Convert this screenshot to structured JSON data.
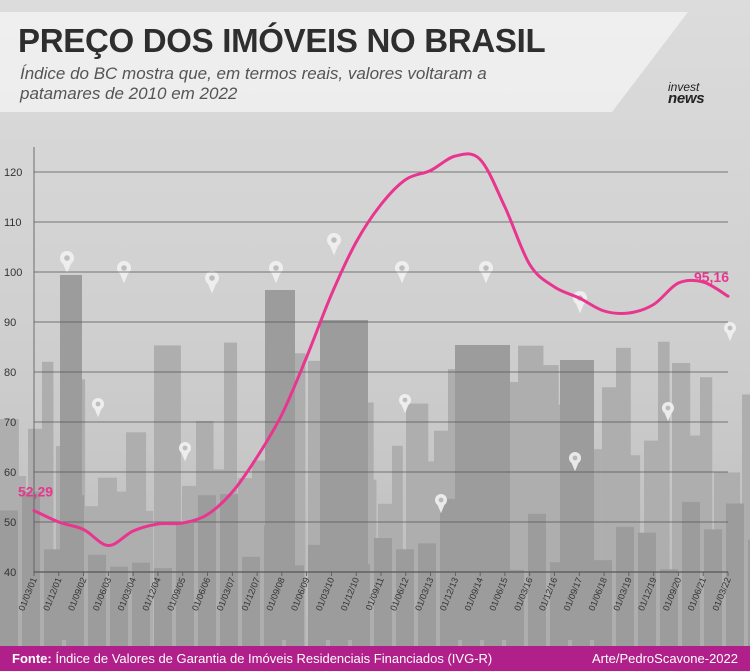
{
  "header": {
    "title": "PREÇO DOS IMÓVEIS NO BRASIL",
    "subtitle": "Índice do BC mostra que, em termos reais, valores voltaram a patamares de 2010 em 2022",
    "logo_line1": "invest",
    "logo_line2": "news"
  },
  "footer": {
    "source_label": "Fonte:",
    "source_text": "Índice de Valores de Garantia de Imóveis Residenciais Financiados (IVG-R)",
    "credit": "Arte/PedroScavone-2022"
  },
  "colors": {
    "line": "#e8368f",
    "footer": "#b1208a",
    "title": "#2e2e2e",
    "grid": "#555555"
  },
  "chart_data": {
    "type": "line",
    "ylim": [
      40,
      125
    ],
    "yticks": [
      40,
      50,
      60,
      70,
      80,
      90,
      100,
      110,
      120
    ],
    "grid": true,
    "categories": [
      "01/03/01",
      "01/12/01",
      "01/09/02",
      "01/06/03",
      "01/03/04",
      "01/12/04",
      "01/09/05",
      "01/06/06",
      "01/03/07",
      "01/12/07",
      "01/09/08",
      "01/06/09",
      "01/03/10",
      "01/12/10",
      "01/09/11",
      "01/06/12",
      "01/03/13",
      "01/12/13",
      "01/09/14",
      "01/06/15",
      "01/03/16",
      "01/12/16",
      "01/09/17",
      "01/06/18",
      "01/03/19",
      "01/12/19",
      "01/09/20",
      "01/06/21",
      "01/03/22"
    ],
    "values": [
      52.29,
      50.0,
      48.5,
      45.3,
      48.2,
      49.6,
      49.8,
      51.5,
      56.0,
      63.0,
      71.5,
      83.0,
      95.5,
      106.0,
      113.5,
      118.5,
      120.3,
      123.2,
      122.5,
      113.0,
      101.5,
      97.0,
      94.8,
      92.2,
      91.8,
      93.5,
      97.8,
      98.0,
      95.16
    ],
    "labels": [
      {
        "text": "52,29",
        "index": 0
      },
      {
        "text": "95,16",
        "index": 28
      }
    ]
  }
}
